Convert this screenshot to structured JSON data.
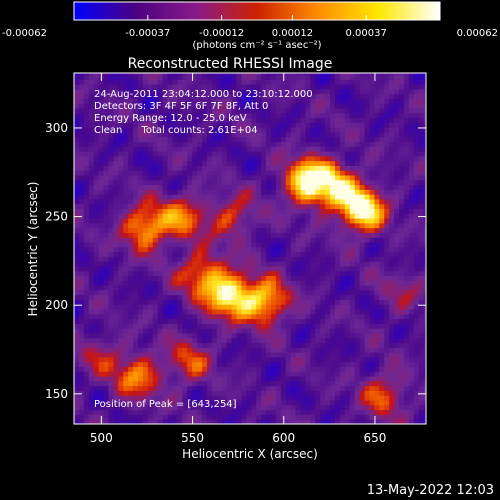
{
  "chart_data": {
    "type": "heatmap",
    "title": "Reconstructed RHESSI Image",
    "xlabel": "Heliocentric X (arcsec)",
    "ylabel": "Heliocentric Y (arcsec)",
    "xlim": [
      485,
      678
    ],
    "ylim": [
      133,
      331
    ],
    "xticks": [
      500,
      550,
      600,
      650
    ],
    "yticks": [
      150,
      200,
      250,
      300
    ],
    "colorbar": {
      "range": [
        -0.00062,
        0.00062
      ],
      "ticks": [
        "-0.00062",
        "-0.00037",
        "-0.00012",
        "0.00012",
        "0.00037",
        "0.00062"
      ],
      "tick_values": [
        -0.00062,
        -0.00037,
        -0.00012,
        0.00012,
        0.00037,
        0.00062
      ],
      "unit_label": "(photons cm⁻² s⁻¹ asec⁻²)",
      "colormap_colors": [
        "#0000ff",
        "#4b0082",
        "#8a1a8a",
        "#cc2200",
        "#ff8c00",
        "#ffe800",
        "#ffffff"
      ]
    },
    "annotations": [
      "24-Aug-2011 23:04:12.000 to 23:10:12.000",
      "Detectors: 3F 4F 5F 6F 7F 8F, Att 0",
      "Energy Range: 12.0 - 25.0 keV",
      "Clean      Total counts: 2.61E+04"
    ],
    "peak_label": "Position of Peak = [643,254]",
    "peak_position": [
      643,
      254
    ],
    "sources": [
      {
        "x": 613,
        "y": 270,
        "amp": 1.0
      },
      {
        "x": 643,
        "y": 254,
        "amp": 1.05
      },
      {
        "x": 628,
        "y": 268,
        "amp": 0.7
      },
      {
        "x": 524,
        "y": 244,
        "amp": 0.75
      },
      {
        "x": 545,
        "y": 250,
        "amp": 0.55
      },
      {
        "x": 570,
        "y": 206,
        "amp": 0.95
      },
      {
        "x": 590,
        "y": 202,
        "amp": 0.8
      },
      {
        "x": 555,
        "y": 218,
        "amp": 0.6
      },
      {
        "x": 572,
        "y": 250,
        "amp": 0.45
      },
      {
        "x": 520,
        "y": 160,
        "amp": 0.6
      },
      {
        "x": 548,
        "y": 168,
        "amp": 0.45
      },
      {
        "x": 655,
        "y": 150,
        "amp": 0.5
      },
      {
        "x": 500,
        "y": 172,
        "amp": 0.3
      },
      {
        "x": 665,
        "y": 208,
        "amp": 0.25
      }
    ]
  },
  "footer_date": "13-May-2022 12:03"
}
